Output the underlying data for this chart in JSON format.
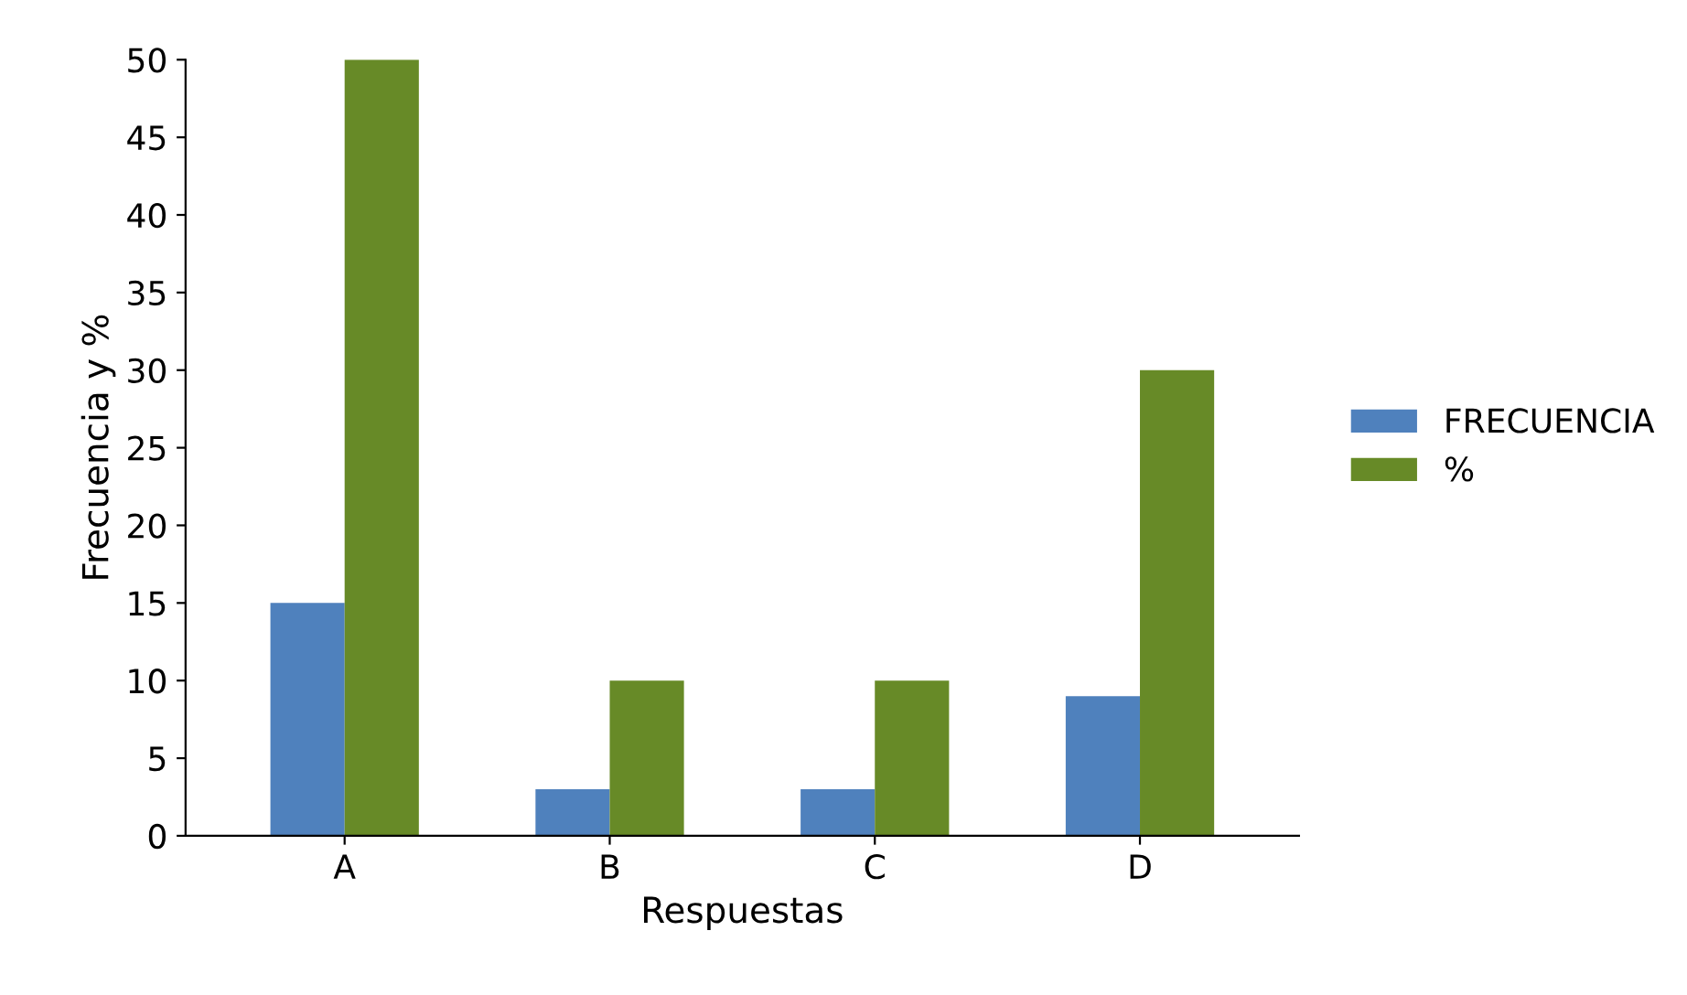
{
  "chart_data": {
    "type": "bar",
    "xlabel": "Respuestas",
    "ylabel": "Frecuencia y %",
    "categories": [
      "A",
      "B",
      "C",
      "D"
    ],
    "series": [
      {
        "name": "FRECUENCIA",
        "color": "#4f81bd",
        "values": [
          15,
          3,
          3,
          9
        ]
      },
      {
        "name": "%",
        "color": "#678a27",
        "values": [
          50,
          10,
          10,
          30
        ]
      }
    ],
    "ylim": [
      0,
      50
    ],
    "yticks": [
      0,
      5,
      10,
      15,
      20,
      25,
      30,
      35,
      40,
      45,
      50
    ],
    "grid": false,
    "legend": "right"
  }
}
